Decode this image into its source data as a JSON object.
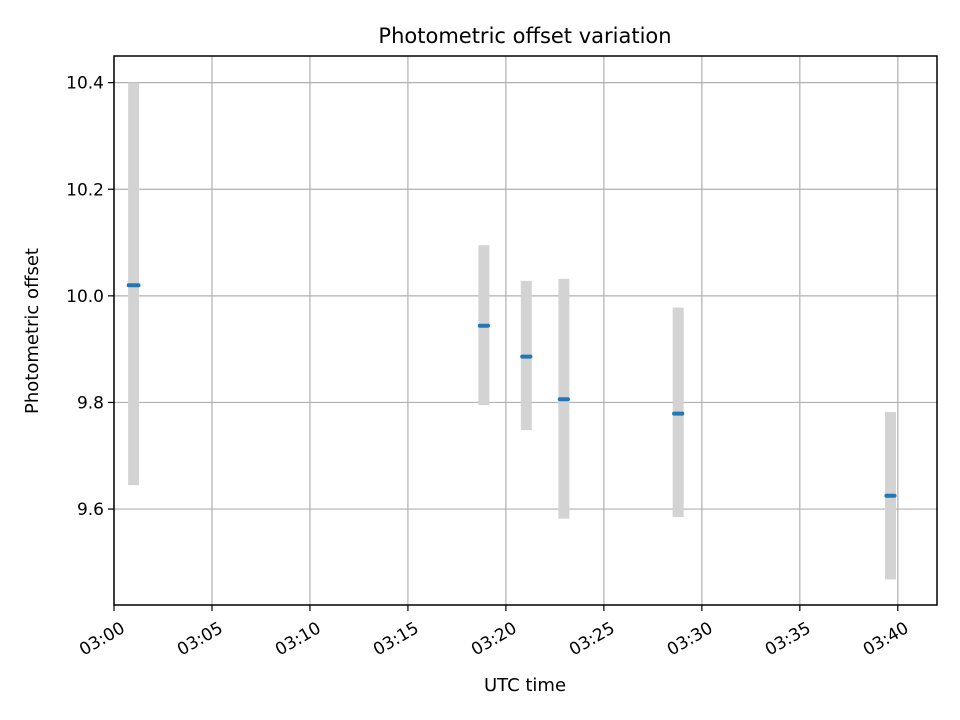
{
  "chart_data": {
    "type": "scatter",
    "title": "Photometric offset variation",
    "xlabel": "UTC time",
    "ylabel": "Photometric offset",
    "x_axis": {
      "kind": "time",
      "range": [
        "03:00:00",
        "03:42:00"
      ],
      "ticks": [
        "03:00",
        "03:05",
        "03:10",
        "03:15",
        "03:20",
        "03:25",
        "03:30",
        "03:35",
        "03:40"
      ]
    },
    "y_axis": {
      "range": [
        9.42,
        10.45
      ],
      "ticks": [
        "9.6",
        "9.8",
        "10.0",
        "10.2",
        "10.4"
      ]
    },
    "grid": true,
    "colors": {
      "marker": "#1f77b4",
      "errorbar": "#d3d3d3",
      "grid": "#b0b0b0"
    },
    "points": [
      {
        "t_start": "03:00:45",
        "t_end": "03:01:15",
        "y": 10.02,
        "y_low": 9.645,
        "y_high": 10.4
      },
      {
        "t_start": "03:18:40",
        "t_end": "03:19:05",
        "y": 9.944,
        "y_low": 9.795,
        "y_high": 10.095
      },
      {
        "t_start": "03:20:50",
        "t_end": "03:21:15",
        "y": 9.886,
        "y_low": 9.748,
        "y_high": 10.028
      },
      {
        "t_start": "03:22:45",
        "t_end": "03:23:10",
        "y": 9.806,
        "y_low": 9.582,
        "y_high": 10.032
      },
      {
        "t_start": "03:28:35",
        "t_end": "03:29:00",
        "y": 9.779,
        "y_low": 9.585,
        "y_high": 9.978
      },
      {
        "t_start": "03:39:25",
        "t_end": "03:39:50",
        "y": 9.625,
        "y_low": 9.468,
        "y_high": 9.782
      }
    ]
  }
}
